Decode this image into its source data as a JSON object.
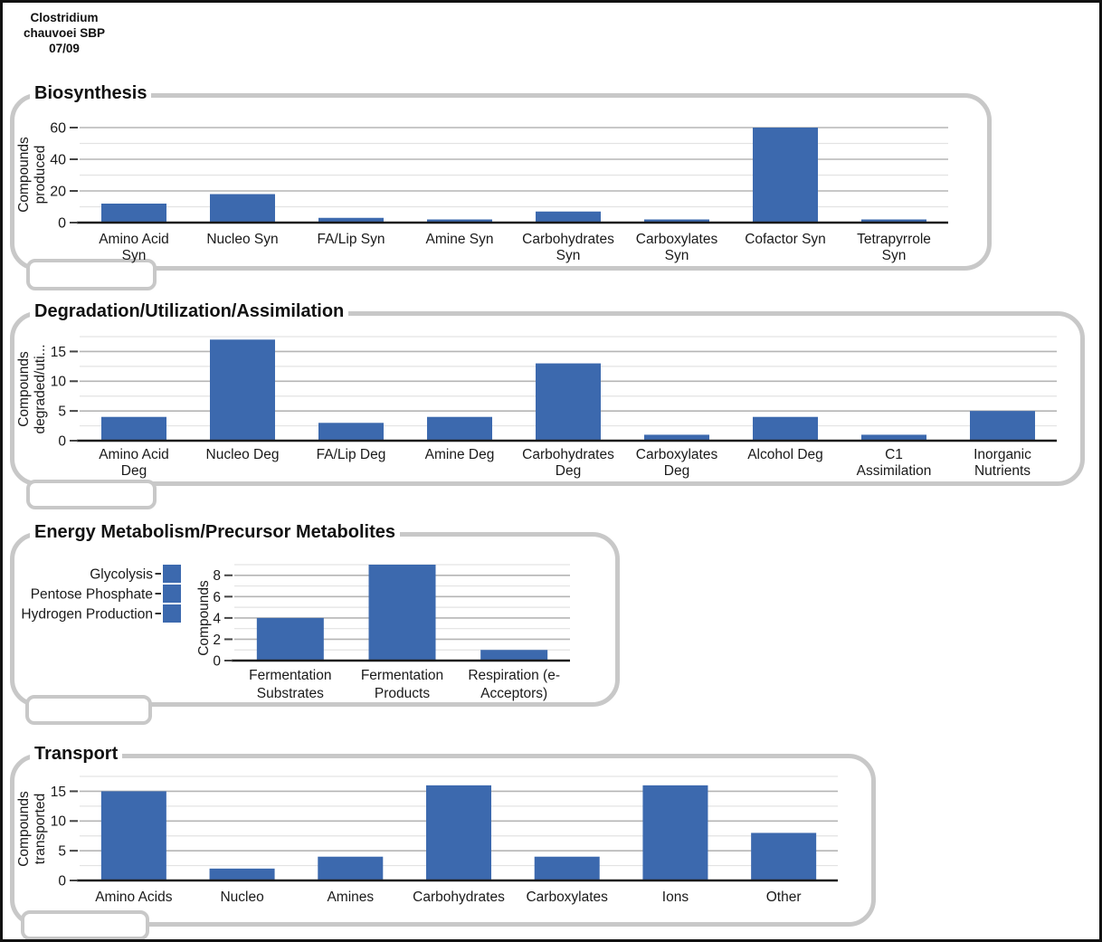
{
  "header": {
    "line1": "Clostridium",
    "line2": "chauvoei SBP",
    "line3": "07/09"
  },
  "colors": {
    "bar": "#3c69ae",
    "panel_border": "#c8c8c8",
    "grid_major": "#b5b5b5",
    "grid_minor": "#e3e3e3",
    "axis": "#1a1a1a",
    "text": "#1a1a1a"
  },
  "chart_data": [
    {
      "type": "bar",
      "panel_title": "Biosynthesis",
      "ylabel_lines": [
        "Compounds",
        "produced"
      ],
      "categories": [
        [
          "Amino Acid",
          "Syn"
        ],
        [
          "Nucleo Syn"
        ],
        [
          "FA/Lip Syn"
        ],
        [
          "Amine Syn"
        ],
        [
          "Carbohydrates",
          "Syn"
        ],
        [
          "Carboxylates",
          "Syn"
        ],
        [
          "Cofactor Syn"
        ],
        [
          "Tetrapyrrole",
          "Syn"
        ]
      ],
      "values": [
        12,
        18,
        3,
        2,
        7,
        2,
        60,
        2
      ],
      "yticks": [
        0,
        20,
        40,
        60
      ],
      "minor_step": 10,
      "ylim": [
        0,
        60
      ],
      "grid": true,
      "legend_position": "none"
    },
    {
      "type": "bar",
      "panel_title": "Degradation/Utilization/Assimilation",
      "ylabel_lines": [
        "Compounds",
        "degraded/uti..."
      ],
      "categories": [
        [
          "Amino Acid",
          "Deg"
        ],
        [
          "Nucleo Deg"
        ],
        [
          "FA/Lip Deg"
        ],
        [
          "Amine Deg"
        ],
        [
          "Carbohydrates",
          "Deg"
        ],
        [
          "Carboxylates",
          "Deg"
        ],
        [
          "Alcohol Deg"
        ],
        [
          "C1",
          "Assimilation"
        ],
        [
          "Inorganic",
          "Nutrients"
        ]
      ],
      "values": [
        4,
        17,
        3,
        4,
        13,
        1,
        4,
        1,
        5
      ],
      "yticks": [
        0,
        5,
        10,
        15
      ],
      "minor_step": 2.5,
      "ylim": [
        0,
        17.5
      ],
      "grid": true,
      "legend_position": "none"
    },
    {
      "type": "bar",
      "panel_title": "Energy Metabolism/Precursor Metabolites",
      "legend_rows": [
        "Glycolysis",
        "Pentose Phosphate",
        "Hydrogen Production"
      ],
      "ylabel_lines": [
        "Compounds"
      ],
      "categories": [
        [
          "Fermentation",
          "Substrates"
        ],
        [
          "Fermentation",
          "Products"
        ],
        [
          "Respiration (e-",
          "Acceptors)"
        ]
      ],
      "values": [
        4,
        9,
        1
      ],
      "yticks": [
        0,
        2,
        4,
        6,
        8
      ],
      "minor_step": 1,
      "ylim": [
        0,
        9
      ],
      "grid": true,
      "legend_position": "left"
    },
    {
      "type": "bar",
      "panel_title": "Transport",
      "ylabel_lines": [
        "Compounds",
        "transported"
      ],
      "categories": [
        [
          "Amino Acids"
        ],
        [
          "Nucleo"
        ],
        [
          "Amines"
        ],
        [
          "Carbohydrates"
        ],
        [
          "Carboxylates"
        ],
        [
          "Ions"
        ],
        [
          "Other"
        ]
      ],
      "values": [
        15,
        2,
        4,
        16,
        4,
        16,
        8
      ],
      "yticks": [
        0,
        5,
        10,
        15
      ],
      "minor_step": 2.5,
      "ylim": [
        0,
        17.5
      ],
      "grid": true,
      "legend_position": "none"
    }
  ]
}
